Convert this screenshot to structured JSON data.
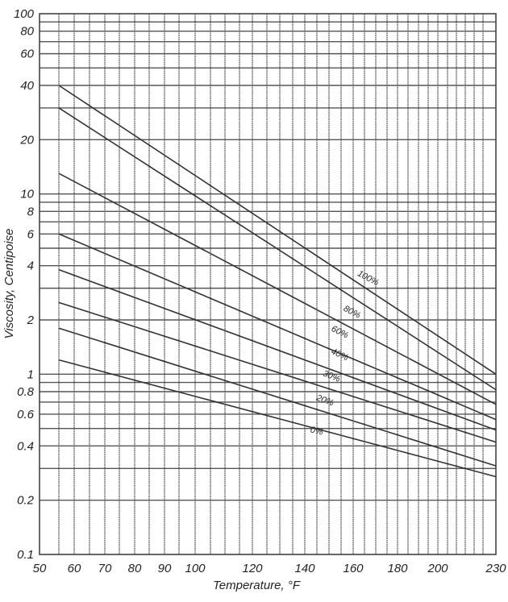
{
  "chart_data": {
    "type": "line",
    "title": "",
    "xlabel": "Temperature, °F",
    "ylabel": "Viscosity, Centipoise",
    "yscale": "log",
    "ylim": [
      0.1,
      100
    ],
    "xlim": [
      50,
      230
    ],
    "grid": true,
    "legend_position": "inline labels on curves",
    "x_ticks": [
      50,
      60,
      70,
      80,
      90,
      100,
      120,
      140,
      160,
      180,
      200,
      230
    ],
    "y_ticks": [
      0.1,
      0.2,
      0.4,
      0.6,
      0.8,
      1,
      2,
      4,
      6,
      8,
      10,
      20,
      40,
      60,
      80,
      100
    ],
    "x_ticks_labels": [
      "50",
      "60",
      "70",
      "80",
      "90",
      "100",
      "120",
      "140",
      "160",
      "180",
      "200",
      "230"
    ],
    "y_ticks_labels": [
      "0.1",
      "0.2",
      "0.4",
      "0.6",
      "0.8",
      "1",
      "2",
      "4",
      "6",
      "8",
      "10",
      "20",
      "40",
      "60",
      "80",
      "100"
    ],
    "x": [
      55,
      230
    ],
    "series": [
      {
        "name": "100%",
        "values": [
          40,
          1.0
        ]
      },
      {
        "name": "(unlabeled)",
        "values": [
          30,
          0.82
        ]
      },
      {
        "name": "80%",
        "values": [
          13,
          0.68
        ]
      },
      {
        "name": "60%",
        "values": [
          6,
          0.56
        ]
      },
      {
        "name": "40%",
        "values": [
          3.8,
          0.49
        ]
      },
      {
        "name": "30%",
        "values": [
          2.5,
          0.42
        ]
      },
      {
        "name": "20%",
        "values": [
          1.8,
          0.31
        ]
      },
      {
        "name": "0%",
        "values": [
          1.2,
          0.27
        ]
      }
    ]
  },
  "labels": {
    "xlabel": "Temperature, °F",
    "ylabel": "Viscosity, Centipoise",
    "curves": [
      "100%",
      "80%",
      "60%",
      "40%",
      "30%",
      "20%",
      "0%"
    ]
  }
}
